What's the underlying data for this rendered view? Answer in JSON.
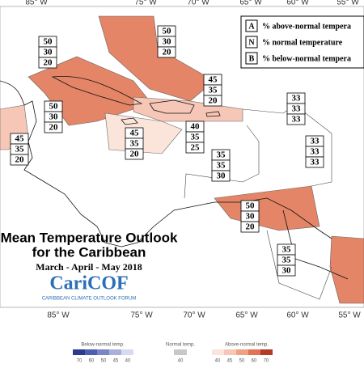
{
  "map": {
    "lon_labels_top": [
      "85° W",
      "75° W",
      "70° W",
      "65° W",
      "60° W",
      "55° W"
    ],
    "lon_labels_bottom": [
      "85° W",
      "75° W",
      "70° W",
      "65° W",
      "60° W",
      "55° W"
    ],
    "title": "Mean Temperature Outlook",
    "subtitle": "for the Caribbean",
    "period": "March - April - May 2018",
    "logo": "CariCOF",
    "logo_caption": "CARIBBEAN CLIMATE OUTLOOK FORUM",
    "key": [
      {
        "letter": "A",
        "text": "% above-normal tempera"
      },
      {
        "letter": "N",
        "text": "% normal temperature"
      },
      {
        "letter": "B",
        "text": "% below-normal tempera"
      }
    ],
    "regions": [
      {
        "above": 50,
        "normal": 30,
        "below": 20
      },
      {
        "above": 50,
        "normal": 30,
        "below": 20
      },
      {
        "above": 45,
        "normal": 35,
        "below": 20
      },
      {
        "above": 50,
        "normal": 30,
        "below": 20
      },
      {
        "above": 45,
        "normal": 35,
        "below": 20
      },
      {
        "above": 45,
        "normal": 35,
        "below": 20
      },
      {
        "above": 40,
        "normal": 35,
        "below": 25
      },
      {
        "above": 33,
        "normal": 33,
        "below": 33
      },
      {
        "above": 33,
        "normal": 33,
        "below": 33
      },
      {
        "above": 35,
        "normal": 35,
        "below": 30
      },
      {
        "above": 50,
        "normal": 30,
        "below": 20
      },
      {
        "above": 35,
        "normal": 35,
        "below": 30
      }
    ],
    "legend": {
      "below_title": "Below-normal temp.",
      "below_ticks": [
        70,
        60,
        50,
        45,
        40
      ],
      "normal_title": "Normal temp.",
      "normal_ticks": [
        40
      ],
      "above_title": "Above-normal temp.",
      "above_ticks": [
        40,
        45,
        50,
        60,
        70
      ]
    }
  }
}
